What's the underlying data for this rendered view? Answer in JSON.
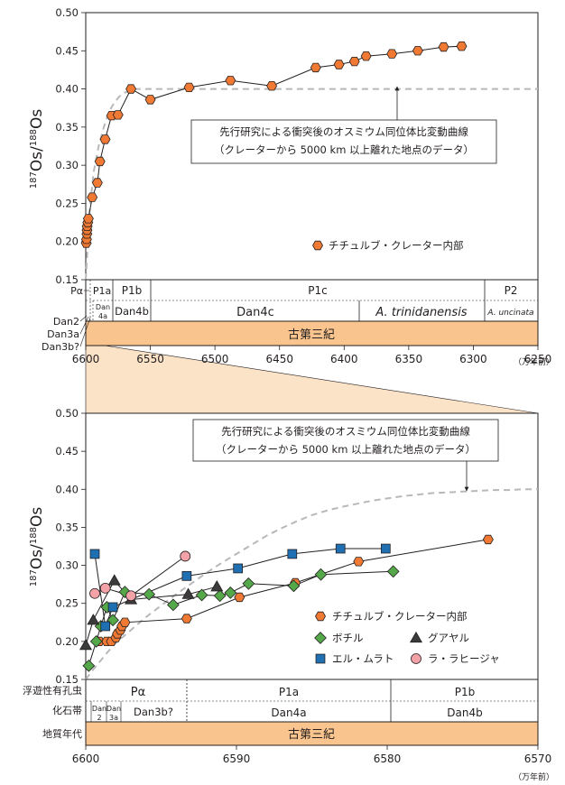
{
  "colors": {
    "chicxulub": "#f07a34",
    "bochil": "#55a84a",
    "guayal": "#3b3b3b",
    "elmulato": "#1f6fb3",
    "lalajilla": "#f3a2a8",
    "paleogene": "#f9c48d",
    "zoom": "#fbe3c8",
    "dashed": "#b8b8b8"
  },
  "chart_data": [
    {
      "type": "line",
      "ylabel": "187Os/188Os",
      "xunit": "（万年前）",
      "xlim": [
        6600,
        6250
      ],
      "ylim": [
        0.15,
        0.5
      ],
      "xticks": [
        "6600",
        "6550",
        "6500",
        "6450",
        "6400",
        "6350",
        "6300",
        "6250"
      ],
      "yticks": [
        "0.15",
        "0.20",
        "0.25",
        "0.30",
        "0.35",
        "0.40",
        "0.45",
        "0.50"
      ],
      "callout": [
        "先行研究による衝突後のオスミウム同位体比変動曲線",
        "（クレーターから 5000 km 以上離れた地点のデータ）"
      ],
      "legend": [
        {
          "marker": "hexagon",
          "label": "チチュルブ・クレーター内部"
        }
      ],
      "reference_curve": {
        "style": "dashed",
        "x": [
          6600,
          6597,
          6594,
          6590,
          6586,
          6582,
          6578,
          6574,
          6570,
          6566,
          6562,
          6558,
          6550,
          6540,
          6520,
          6450,
          6350,
          6250
        ],
        "y": [
          0.15,
          0.24,
          0.29,
          0.325,
          0.35,
          0.37,
          0.382,
          0.39,
          0.395,
          0.398,
          0.4,
          0.4,
          0.4,
          0.4,
          0.4,
          0.4,
          0.4,
          0.4
        ]
      },
      "series": [
        {
          "key": "chicxulub",
          "marker": "hexagon",
          "x": [
            6599.6,
            6599.4,
            6599.1,
            6599.0,
            6598.9,
            6598.4,
            6598.0,
            6595.0,
            6591.0,
            6589.0,
            6585.0,
            6580.0,
            6575.0,
            6565.0,
            6550.0,
            6520.0,
            6488.0,
            6456.0,
            6422.0,
            6404.0,
            6392.0,
            6383.0,
            6363.0,
            6343.0,
            6323.0,
            6309.0
          ],
          "y": [
            0.198,
            0.203,
            0.21,
            0.215,
            0.22,
            0.225,
            0.23,
            0.258,
            0.277,
            0.305,
            0.334,
            0.365,
            0.366,
            0.4,
            0.386,
            0.402,
            0.411,
            0.404,
            0.428,
            0.432,
            0.436,
            0.443,
            0.446,
            0.45,
            0.455,
            0.456
          ]
        }
      ],
      "chronostrat": {
        "rows": [
          {
            "left": "Pα",
            "segments": [
              {
                "from": 6600,
                "to": 6593.5,
                "label": "P1a"
              },
              {
                "from": 6593.5,
                "to": 6565,
                "label": "P1b"
              },
              {
                "from": 6565,
                "to": 6291,
                "label": "P1c"
              },
              {
                "from": 6291,
                "to": 6250,
                "label": "P2"
              }
            ]
          },
          {
            "segments": [
              {
                "from": 6598.2,
                "to": 6593.5,
                "label": "Dan 4a"
              },
              {
                "from": 6593.5,
                "to": 6565,
                "label": "Dan4b"
              },
              {
                "from": 6565,
                "to": 6383,
                "label": "Dan4c"
              },
              {
                "from": 6383,
                "to": 6291,
                "label": "A. trinidanensis"
              },
              {
                "from": 6291,
                "to": 6250,
                "label": "A. uncinata"
              }
            ]
          }
        ],
        "left_labels": [
          "Dan2",
          "Dan3a",
          "Dan3b?"
        ],
        "era": "古第三紀"
      }
    },
    {
      "type": "line",
      "ylabel": "187Os/188Os",
      "xunit": "（万年前）",
      "xlim": [
        6600,
        6570
      ],
      "ylim": [
        0.15,
        0.5
      ],
      "xticks": [
        "6600",
        "6590",
        "6580",
        "6570"
      ],
      "yticks": [
        "0.15",
        "0.20",
        "0.25",
        "0.30",
        "0.35",
        "0.40",
        "0.45",
        "0.50"
      ],
      "callout": [
        "先行研究による衝突後のオスミウム同位体比変動曲線",
        "（クレーターから 5000 km 以上離れた地点のデータ）"
      ],
      "legend": [
        {
          "marker": "hexagon",
          "label": "チチュルブ・クレーター内部"
        },
        {
          "marker": "diamond",
          "label": "ボチル"
        },
        {
          "marker": "triangle",
          "label": "グアヤル"
        },
        {
          "marker": "square",
          "label": "エル・ムラト"
        },
        {
          "marker": "circle",
          "label": "ラ・ラヒージャ"
        }
      ],
      "reference_curve": {
        "style": "dashed",
        "x": [
          6600,
          6599.5,
          6599.0,
          6598.5,
          6598.0,
          6597.0,
          6596.0,
          6595.0,
          6594.0,
          6593.0,
          6592.0,
          6591.0,
          6590.0,
          6589.0,
          6588.0,
          6587.0,
          6586.0,
          6585.0,
          6584.0,
          6583.0,
          6582.0,
          6581.0,
          6580.0,
          6579.0,
          6578.0,
          6577.0,
          6576.0,
          6575.0,
          6574.0,
          6573.0,
          6572.0,
          6571.0,
          6570.0
        ],
        "y": [
          0.15,
          0.163,
          0.175,
          0.187,
          0.198,
          0.215,
          0.232,
          0.247,
          0.262,
          0.276,
          0.29,
          0.303,
          0.315,
          0.327,
          0.339,
          0.349,
          0.358,
          0.366,
          0.372,
          0.377,
          0.381,
          0.385,
          0.388,
          0.391,
          0.393,
          0.395,
          0.396,
          0.397,
          0.398,
          0.399,
          0.399,
          0.4,
          0.4
        ]
      },
      "series": [
        {
          "key": "chicxulub",
          "marker": "hexagon",
          "x": [
            6599.1,
            6598.6,
            6598.3,
            6598.0,
            6597.9,
            6597.7,
            6597.6,
            6597.4,
            6593.3,
            6589.8,
            6586.1,
            6581.9,
            6573.3
          ],
          "y": [
            0.2,
            0.2,
            0.2,
            0.205,
            0.21,
            0.215,
            0.22,
            0.225,
            0.23,
            0.258,
            0.277,
            0.305,
            0.334
          ]
        },
        {
          "key": "bochil",
          "marker": "diamond",
          "x": [
            6599.8,
            6599.3,
            6599.0,
            6598.6,
            6598.2,
            6597.4,
            6595.8,
            6594.2,
            6592.3,
            6591.1,
            6590.4,
            6589.2,
            6586.2,
            6584.4,
            6579.6
          ],
          "y": [
            0.168,
            0.2,
            0.22,
            0.245,
            0.228,
            0.265,
            0.262,
            0.248,
            0.261,
            0.26,
            0.264,
            0.276,
            0.273,
            0.288,
            0.292
          ]
        },
        {
          "key": "guayal",
          "marker": "triangle",
          "x": [
            6600.0,
            6599.5,
            6598.1,
            6597.0,
            6593.2,
            6591.3
          ],
          "y": [
            0.195,
            0.228,
            0.28,
            0.255,
            0.262,
            0.272
          ]
        },
        {
          "key": "elmulato",
          "marker": "square",
          "x": [
            6599.4,
            6598.7,
            6598.2,
            6593.3,
            6589.9,
            6586.3,
            6583.1,
            6580.1
          ],
          "y": [
            0.315,
            0.22,
            0.245,
            0.286,
            0.296,
            0.315,
            0.322,
            0.322
          ]
        },
        {
          "key": "lalajilla",
          "marker": "circle",
          "x": [
            6599.4,
            6598.7,
            6597.0,
            6593.4
          ],
          "y": [
            0.263,
            0.27,
            0.26,
            0.312
          ]
        }
      ],
      "chronostrat": {
        "rows": [
          {
            "left": "浮遊性有孔虫",
            "segments": [
              {
                "from": 6600,
                "to": 6593.3,
                "label": "Pα"
              },
              {
                "from": 6593.3,
                "to": 6580.2,
                "label": "P1a"
              },
              {
                "from": 6580.2,
                "to": 6570,
                "label": "P1b"
              }
            ]
          },
          {
            "left": "化石帯",
            "segments": [
              {
                "from": 6599.3,
                "to": 6598.2,
                "label": "Dan 2"
              },
              {
                "from": 6598.2,
                "to": 6597.2,
                "label": "Dan 3a"
              },
              {
                "from": 6597.2,
                "to": 6593.3,
                "label": "Dan3b?"
              },
              {
                "from": 6593.3,
                "to": 6580.2,
                "label": "Dan4a"
              },
              {
                "from": 6580.2,
                "to": 6570,
                "label": "Dan4b"
              }
            ]
          }
        ],
        "left_labels": [
          "地質年代"
        ],
        "era": "古第三紀"
      }
    }
  ]
}
